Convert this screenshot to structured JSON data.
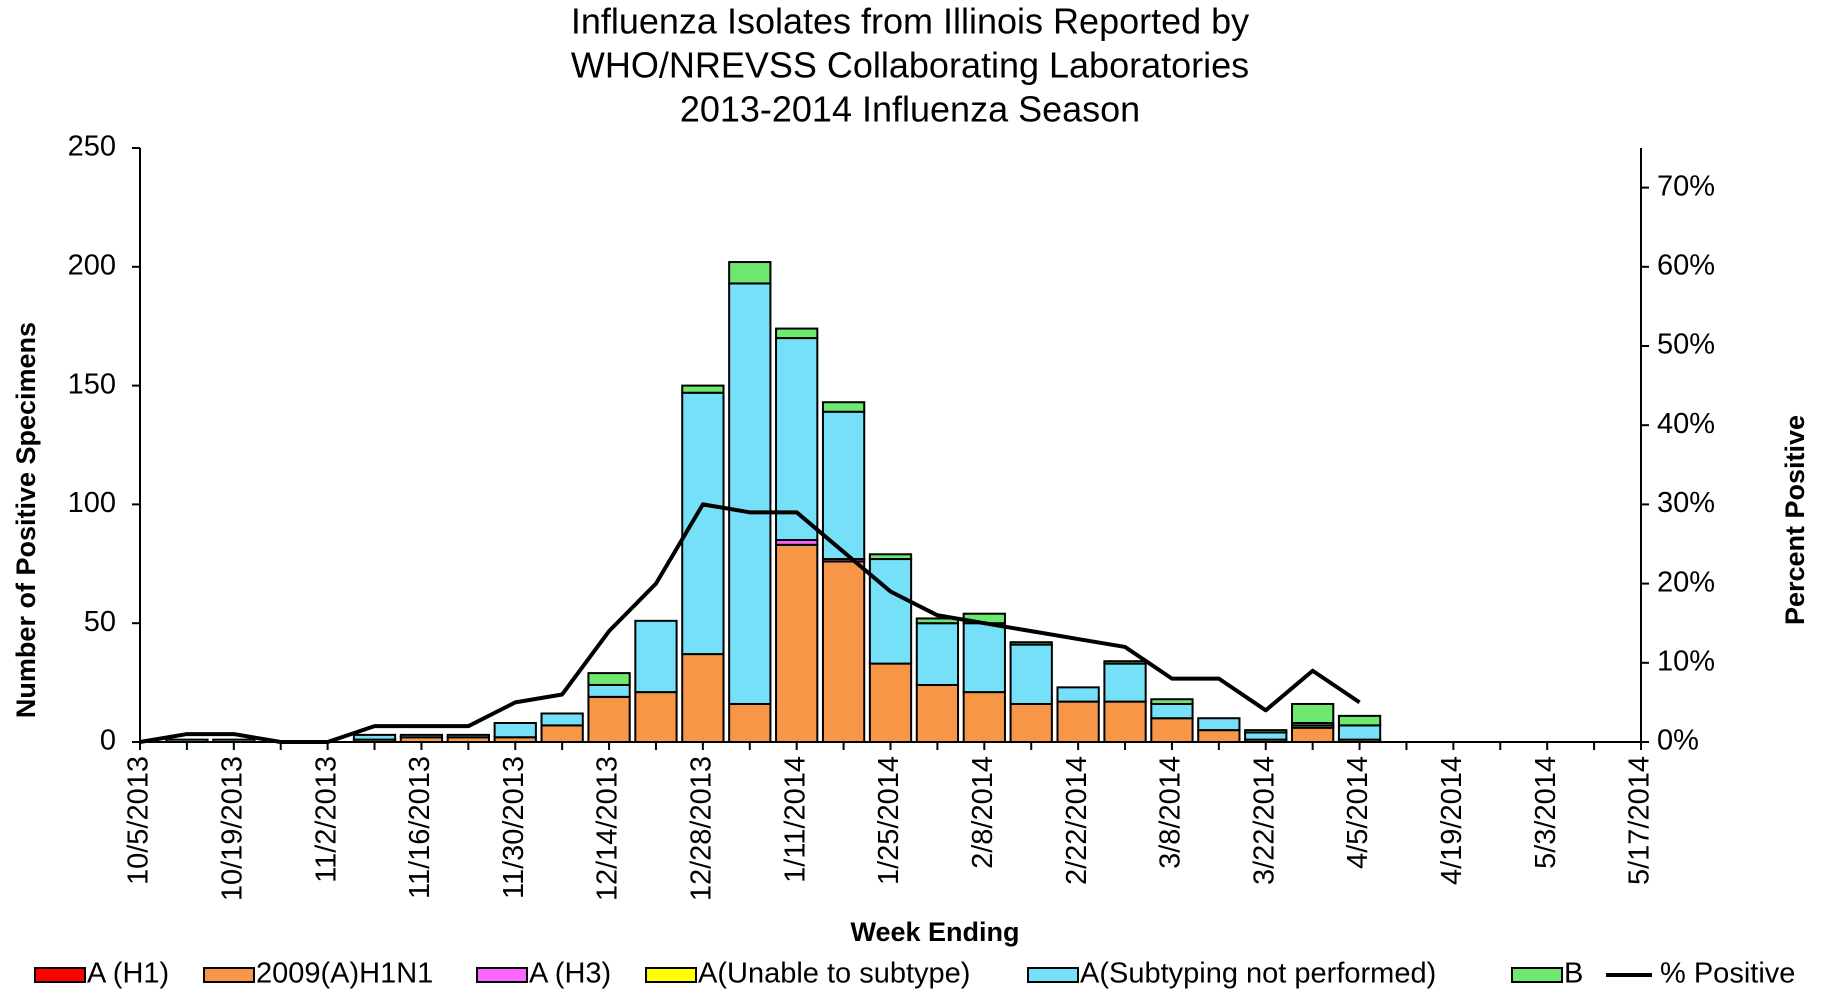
{
  "chart_data": {
    "type": "bar",
    "title": [
      "Influenza  Isolates from Illinois Reported by",
      "WHO/NREVSS Collaborating  Laboratories",
      "2013-2014 Influenza Season"
    ],
    "x_label": "Week Ending",
    "y_label": "Number of  Positive Specimens",
    "y2_label": "Percent Positive",
    "stacked": true,
    "categories": [
      "10/5/2013",
      null,
      "10/19/2013",
      null,
      "11/2/2013",
      null,
      "11/16/2013",
      null,
      "11/30/2013",
      null,
      "12/14/2013",
      null,
      "12/28/2013",
      null,
      "1/11/2014",
      null,
      "1/25/2014",
      null,
      "2/8/2014",
      null,
      "2/22/2014",
      null,
      "3/8/2014",
      null,
      "3/22/2014",
      null,
      "4/5/2014",
      null,
      "4/19/2014",
      null,
      "5/3/2014",
      null,
      "5/17/2014"
    ],
    "series": [
      {
        "name": "A (H1)",
        "type": "bar",
        "color": "#ff0000",
        "values": [
          0,
          0,
          0,
          0,
          0,
          0,
          0,
          0,
          0,
          0,
          0,
          0,
          0,
          0,
          0,
          0,
          0,
          0,
          0,
          0,
          0,
          0,
          0,
          0,
          0,
          0,
          0,
          null,
          null,
          null,
          null,
          null,
          null
        ]
      },
      {
        "name": "2009(A)H1N1",
        "type": "bar",
        "color": "#f79646",
        "values": [
          0,
          0,
          0,
          0,
          0,
          1,
          2,
          2,
          2,
          7,
          19,
          21,
          37,
          16,
          83,
          76,
          33,
          24,
          21,
          16,
          17,
          17,
          10,
          5,
          1,
          6,
          1,
          null,
          null,
          null,
          null,
          null,
          null
        ]
      },
      {
        "name": "A (H3)",
        "type": "bar",
        "color": "#ff66ff",
        "values": [
          0,
          0,
          0,
          0,
          0,
          0,
          0,
          0,
          0,
          0,
          0,
          0,
          0,
          0,
          2,
          1,
          0,
          0,
          0,
          0,
          0,
          0,
          0,
          0,
          0,
          0,
          0,
          null,
          null,
          null,
          null,
          null,
          null
        ]
      },
      {
        "name": "A(Unable to subtype)",
        "type": "bar",
        "color": "#ffff00",
        "values": [
          0,
          0,
          0,
          0,
          0,
          0,
          0,
          0,
          0,
          0,
          0,
          0,
          0,
          0,
          0,
          0,
          0,
          0,
          0,
          0,
          0,
          0,
          0,
          0,
          0,
          1,
          0,
          null,
          null,
          null,
          null,
          null,
          null
        ]
      },
      {
        "name": "A(Subtyping not performed)",
        "type": "bar",
        "color": "#75e0f7",
        "values": [
          0,
          1,
          1,
          0,
          0,
          2,
          1,
          1,
          6,
          5,
          5,
          30,
          110,
          177,
          85,
          62,
          44,
          26,
          29,
          25,
          6,
          16,
          6,
          5,
          3,
          1,
          6,
          null,
          null,
          null,
          null,
          null,
          null
        ]
      },
      {
        "name": "B",
        "type": "bar",
        "color": "#6ee86e",
        "values": [
          0,
          0,
          0,
          0,
          0,
          0,
          0,
          0,
          0,
          0,
          5,
          0,
          3,
          9,
          4,
          4,
          2,
          2,
          4,
          1,
          0,
          1,
          2,
          0,
          1,
          8,
          4,
          null,
          null,
          null,
          null,
          null,
          null
        ]
      },
      {
        "name": "% Positive",
        "type": "line",
        "axis": "y2",
        "color": "#000000",
        "values": [
          0,
          1,
          1,
          0,
          0,
          2,
          2,
          2,
          5,
          6,
          14,
          20,
          30,
          29,
          29,
          24,
          19,
          16,
          15,
          14,
          13,
          12,
          8,
          8,
          4,
          9,
          5,
          null,
          null,
          null,
          null,
          null,
          null
        ]
      }
    ],
    "ylim": [
      0,
      250
    ],
    "yticks": [
      0,
      50,
      100,
      150,
      200,
      250
    ],
    "y2lim": [
      0,
      75
    ],
    "y2ticks": [
      {
        "value": 0,
        "label": "0%"
      },
      {
        "value": 10,
        "label": "10%"
      },
      {
        "value": 20,
        "label": "20%"
      },
      {
        "value": 30,
        "label": "30%"
      },
      {
        "value": 40,
        "label": "40%"
      },
      {
        "value": 50,
        "label": "50%"
      },
      {
        "value": 60,
        "label": "60%"
      },
      {
        "value": 70,
        "label": "70%"
      }
    ],
    "legend": "bottom"
  }
}
